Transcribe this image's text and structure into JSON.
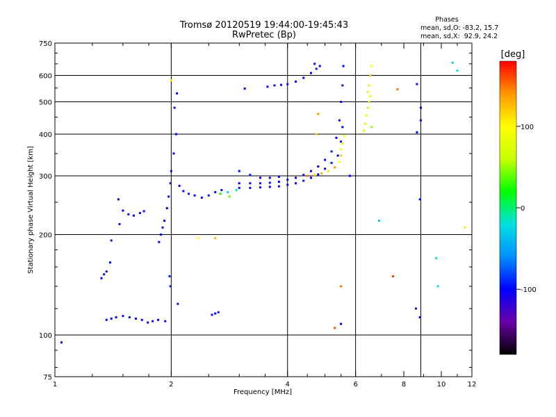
{
  "chart_data": {
    "type": "scatter",
    "title": "Tromsø 20120519 19:44:00-19:45:43",
    "subtitle": "RwPretec (Bp)",
    "xlabel": "Frequency [MHz]",
    "ylabel": "Stationary phase Virtual Height [km]",
    "x_scale": "log",
    "y_scale": "log",
    "xlim": [
      1,
      12
    ],
    "ylim": [
      75,
      750
    ],
    "x_ticks": [
      1,
      2,
      4,
      6,
      8,
      10,
      12
    ],
    "x_minor_ticks": [
      1.25,
      1.5,
      1.75,
      2.5,
      3,
      3.5,
      4.5,
      5,
      5.5,
      7,
      9,
      11
    ],
    "y_ticks": [
      75,
      100,
      200,
      300,
      400,
      500,
      600,
      750
    ],
    "grid": true,
    "grid_x": [
      2,
      4,
      6,
      8.85
    ],
    "grid_y": [
      100,
      200,
      300,
      400,
      500,
      600
    ],
    "stats_header": "Phases",
    "stats": [
      "mean, sd,O: -83.2, 15.7",
      "mean, sd,X:  92.9, 24.2"
    ],
    "colorbar": {
      "label": "[deg]",
      "min": -180,
      "max": 180,
      "ticks": [
        100,
        0,
        -100
      ],
      "colors": [
        "#000000",
        "#6a00a8",
        "#0000ff",
        "#0090ff",
        "#00e0e0",
        "#00ff00",
        "#c8ff00",
        "#ffff00",
        "#ff9600",
        "#ff0000"
      ]
    },
    "series": [
      {
        "values_note": "phase in degrees",
        "points": [
          [
            1.04,
            95,
            -110
          ],
          [
            1.32,
            148,
            -100
          ],
          [
            1.34,
            152,
            -95
          ],
          [
            1.36,
            155,
            -105
          ],
          [
            1.39,
            165,
            -100
          ],
          [
            1.4,
            192,
            -110
          ],
          [
            1.36,
            111,
            -100
          ],
          [
            1.4,
            112,
            -95
          ],
          [
            1.44,
            113,
            -105
          ],
          [
            1.5,
            114,
            -100
          ],
          [
            1.56,
            113,
            -95
          ],
          [
            1.62,
            112,
            -100
          ],
          [
            1.68,
            111,
            -105
          ],
          [
            1.74,
            109,
            -100
          ],
          [
            1.79,
            110,
            -95
          ],
          [
            1.85,
            111,
            -100
          ],
          [
            1.93,
            110,
            -105
          ],
          [
            1.46,
            255,
            -105
          ],
          [
            1.5,
            236,
            -100
          ],
          [
            1.55,
            230,
            -95
          ],
          [
            1.6,
            228,
            -100
          ],
          [
            1.66,
            232,
            -105
          ],
          [
            1.7,
            235,
            -100
          ],
          [
            1.47,
            215,
            -110
          ],
          [
            1.86,
            190,
            -105
          ],
          [
            1.88,
            200,
            -100
          ],
          [
            1.9,
            210,
            -95
          ],
          [
            1.92,
            220,
            -100
          ],
          [
            1.95,
            240,
            -105
          ],
          [
            1.97,
            260,
            -100
          ],
          [
            1.99,
            285,
            -95
          ],
          [
            2.0,
            310,
            -100
          ],
          [
            2.03,
            350,
            -105
          ],
          [
            2.06,
            400,
            -100
          ],
          [
            2.04,
            480,
            -95
          ],
          [
            2.07,
            530,
            -100
          ],
          [
            2.1,
            280,
            -105
          ],
          [
            2.15,
            270,
            -100
          ],
          [
            2.22,
            265,
            -95
          ],
          [
            2.3,
            262,
            -100
          ],
          [
            2.4,
            258,
            -105
          ],
          [
            2.5,
            262,
            -100
          ],
          [
            2.6,
            268,
            -95
          ],
          [
            2.7,
            272,
            -100
          ],
          [
            2.55,
            115,
            -105
          ],
          [
            2.6,
            116,
            -100
          ],
          [
            2.65,
            117,
            -95
          ],
          [
            2.08,
            124,
            -110
          ],
          [
            2.8,
            268,
            -20
          ],
          [
            2.95,
            272,
            -10
          ],
          [
            2.83,
            260,
            40
          ],
          [
            2.68,
            265,
            20
          ],
          [
            3.0,
            285,
            -100
          ],
          [
            3.2,
            285,
            -105
          ],
          [
            3.4,
            285,
            -100
          ],
          [
            3.6,
            286,
            -95
          ],
          [
            3.8,
            288,
            -100
          ],
          [
            4.0,
            292,
            -105
          ],
          [
            4.2,
            296,
            -100
          ],
          [
            4.4,
            302,
            -95
          ],
          [
            4.6,
            310,
            -100
          ],
          [
            4.8,
            320,
            -105
          ],
          [
            5.0,
            335,
            -100
          ],
          [
            5.2,
            355,
            -95
          ],
          [
            5.35,
            390,
            -100
          ],
          [
            5.45,
            440,
            -105
          ],
          [
            5.5,
            500,
            -100
          ],
          [
            5.55,
            560,
            -95
          ],
          [
            5.58,
            640,
            -100
          ],
          [
            3.0,
            276,
            -105
          ],
          [
            3.2,
            276,
            -100
          ],
          [
            3.4,
            277,
            -95
          ],
          [
            3.6,
            278,
            -100
          ],
          [
            3.8,
            279,
            -105
          ],
          [
            4.0,
            282,
            -100
          ],
          [
            3.0,
            310,
            -100
          ],
          [
            3.2,
            302,
            -95
          ],
          [
            3.4,
            296,
            -100
          ],
          [
            3.6,
            296,
            -105
          ],
          [
            3.8,
            298,
            -100
          ],
          [
            4.2,
            285,
            -100
          ],
          [
            4.4,
            290,
            -95
          ],
          [
            4.6,
            296,
            -100
          ],
          [
            4.8,
            303,
            -105
          ],
          [
            5.0,
            315,
            -100
          ],
          [
            5.2,
            328,
            -95
          ],
          [
            5.4,
            345,
            -100
          ],
          [
            5.5,
            380,
            -105
          ],
          [
            5.55,
            420,
            -100
          ],
          [
            3.55,
            555,
            -100
          ],
          [
            3.7,
            560,
            -105
          ],
          [
            3.85,
            562,
            -100
          ],
          [
            4.0,
            565,
            -95
          ],
          [
            4.2,
            575,
            -100
          ],
          [
            4.4,
            590,
            -105
          ],
          [
            4.6,
            610,
            -100
          ],
          [
            4.75,
            628,
            -95
          ],
          [
            4.85,
            640,
            -100
          ],
          [
            4.7,
            650,
            -105
          ],
          [
            3.1,
            548,
            -100
          ],
          [
            4.7,
            302,
            120
          ],
          [
            4.9,
            305,
            130
          ],
          [
            5.1,
            310,
            110
          ],
          [
            5.3,
            318,
            140
          ],
          [
            5.45,
            330,
            100
          ],
          [
            5.5,
            345,
            120
          ],
          [
            5.5,
            360,
            90
          ],
          [
            5.55,
            375,
            80
          ],
          [
            5.6,
            395,
            100
          ],
          [
            6.3,
            410,
            60
          ],
          [
            6.35,
            430,
            70
          ],
          [
            6.4,
            455,
            80
          ],
          [
            6.45,
            480,
            60
          ],
          [
            6.5,
            500,
            70
          ],
          [
            6.55,
            520,
            90
          ],
          [
            6.5,
            560,
            110
          ],
          [
            6.55,
            600,
            120
          ],
          [
            6.6,
            640,
            100
          ],
          [
            6.6,
            420,
            50
          ],
          [
            6.45,
            535,
            75
          ],
          [
            5.8,
            300,
            -100
          ],
          [
            6.9,
            220,
            -40
          ],
          [
            7.5,
            150,
            160
          ],
          [
            7.7,
            545,
            150
          ],
          [
            8.65,
            565,
            -110
          ],
          [
            8.85,
            480,
            -100
          ],
          [
            8.85,
            440,
            -95
          ],
          [
            8.65,
            405,
            -100
          ],
          [
            8.8,
            255,
            -95
          ],
          [
            8.6,
            120,
            -110
          ],
          [
            8.8,
            113,
            -100
          ],
          [
            9.7,
            170,
            -20
          ],
          [
            9.8,
            140,
            -20
          ],
          [
            10.7,
            655,
            -30
          ],
          [
            11.0,
            620,
            -20
          ],
          [
            11.5,
            210,
            110
          ],
          [
            5.5,
            140,
            150
          ],
          [
            5.5,
            108,
            -100
          ],
          [
            5.3,
            105,
            160
          ],
          [
            4.8,
            460,
            140
          ],
          [
            4.75,
            400,
            120
          ],
          [
            4.5,
            300,
            150
          ],
          [
            2.0,
            580,
            110
          ],
          [
            1.99,
            140,
            -95
          ],
          [
            1.98,
            150,
            -90
          ],
          [
            2.35,
            195,
            100
          ],
          [
            2.6,
            195,
            130
          ]
        ]
      }
    ]
  }
}
